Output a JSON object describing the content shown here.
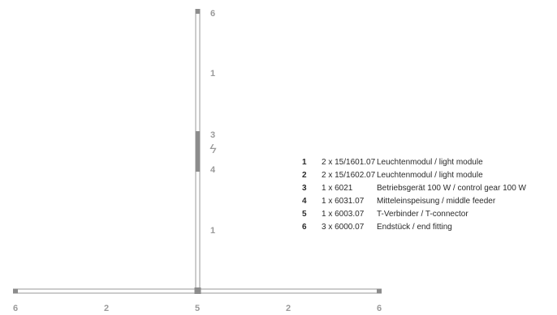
{
  "diagram": {
    "labels": {
      "vertical_top_end": "6",
      "vertical_upper_module": "1",
      "gear": "3",
      "feeder": "4",
      "vertical_lower_module": "1",
      "bottom_left_end": "6",
      "bottom_left_module": "2",
      "connector": "5",
      "bottom_right_module": "2",
      "bottom_right_end": "6"
    },
    "power_symbol": "ϟ"
  },
  "legend": [
    {
      "num": "1",
      "qty": "2 x 15/1601.07",
      "desc": "Leuchtenmodul / light module"
    },
    {
      "num": "2",
      "qty": "2 x 15/1602.07",
      "desc": "Leuchtenmodul / light module"
    },
    {
      "num": "3",
      "qty": "1 x 6021",
      "desc": "Betriebsgerät 100 W / control gear 100 W"
    },
    {
      "num": "4",
      "qty": "1 x 6031.07",
      "desc": "Mitteleinspeisung / middle feeder"
    },
    {
      "num": "5",
      "qty": "1 x 6003.07",
      "desc": "T-Verbinder / T-connector"
    },
    {
      "num": "6",
      "qty": "3 x 6000.07",
      "desc": "Endstück / end fitting"
    }
  ],
  "colors": {
    "profile_outline": "#9a9a9a",
    "fitting_fill": "#8c8c8c",
    "label": "#9a9a9a",
    "text": "#2a2a2a"
  }
}
